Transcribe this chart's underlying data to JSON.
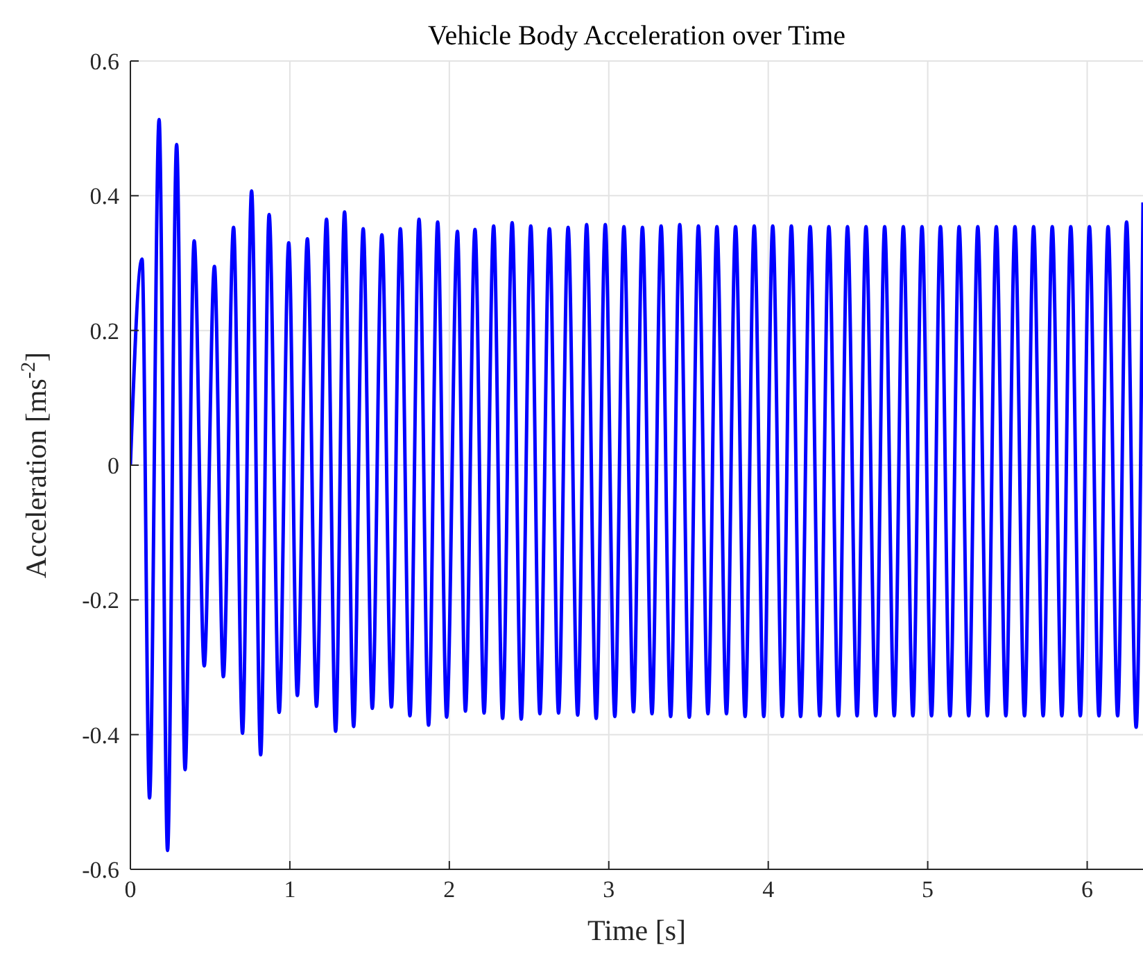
{
  "chart_data": {
    "type": "line",
    "title": "Vehicle Body Acceleration over Time",
    "xlabel": "Time [s]",
    "ylabel": "Acceleration [ms$^{-2}$]",
    "xlim": [
      0,
      6.35
    ],
    "ylim": [
      -0.6,
      0.6
    ],
    "xticks": [
      0,
      1,
      2,
      3,
      4,
      5,
      6
    ],
    "yticks": [
      -0.6,
      -0.4,
      -0.2,
      0,
      0.2,
      0.4,
      0.6
    ],
    "grid": true,
    "line_style": "solid",
    "marker": "none",
    "series": [
      {
        "color": "#0000ff",
        "x": [
          0,
          0.073,
          0.12,
          0.18,
          0.233,
          0.29,
          0.343,
          0.4,
          0.463,
          0.527,
          0.583,
          0.647,
          0.703,
          0.76,
          0.817,
          0.87,
          0.933,
          0.993,
          1.047,
          1.11,
          1.167,
          1.23,
          1.287,
          1.343,
          1.4,
          1.46,
          1.517,
          1.577,
          1.637,
          1.693,
          1.753,
          1.81,
          1.87,
          1.927,
          1.983,
          2.051,
          2.101,
          2.161,
          2.218,
          2.278,
          2.334,
          2.394,
          2.451,
          2.511,
          2.568,
          2.628,
          2.685,
          2.745,
          2.805,
          2.861,
          2.921,
          2.978,
          3.038,
          3.095,
          3.155,
          3.211,
          3.271,
          3.328,
          3.388,
          3.445,
          3.505,
          3.562,
          3.622,
          3.678,
          3.738,
          3.795,
          3.855,
          3.912,
          3.972,
          4.028,
          4.088,
          4.145,
          4.203,
          4.263,
          4.323,
          4.38,
          4.44,
          4.497,
          4.557,
          4.613,
          4.674,
          4.73,
          4.79,
          4.847,
          4.907,
          4.964,
          5.024,
          5.08,
          5.14,
          5.197,
          5.257,
          5.314,
          5.374,
          5.43,
          5.49,
          5.547,
          5.607,
          5.664,
          5.724,
          5.781,
          5.841,
          5.897,
          5.957,
          6.014,
          6.074,
          6.131,
          6.191,
          6.247,
          6.307,
          6.35
        ],
        "values": [
          0,
          0.306,
          -0.494,
          0.513,
          -0.572,
          0.476,
          -0.452,
          0.333,
          -0.298,
          0.295,
          -0.314,
          0.353,
          -0.398,
          0.407,
          -0.43,
          0.372,
          -0.367,
          0.33,
          -0.342,
          0.336,
          -0.358,
          0.365,
          -0.395,
          0.376,
          -0.388,
          0.351,
          -0.361,
          0.342,
          -0.359,
          0.351,
          -0.372,
          0.365,
          -0.386,
          0.361,
          -0.374,
          0.347,
          -0.365,
          0.35,
          -0.368,
          0.355,
          -0.376,
          0.36,
          -0.377,
          0.355,
          -0.369,
          0.351,
          -0.368,
          0.353,
          -0.371,
          0.357,
          -0.376,
          0.357,
          -0.373,
          0.354,
          -0.366,
          0.353,
          -0.369,
          0.355,
          -0.373,
          0.357,
          -0.374,
          0.355,
          -0.369,
          0.354,
          -0.369,
          0.354,
          -0.373,
          0.355,
          -0.373,
          0.355,
          -0.373,
          0.355,
          -0.373,
          0.354,
          -0.372,
          0.354,
          -0.372,
          0.354,
          -0.372,
          0.354,
          -0.372,
          0.354,
          -0.372,
          0.354,
          -0.372,
          0.354,
          -0.372,
          0.354,
          -0.372,
          0.354,
          -0.372,
          0.354,
          -0.372,
          0.354,
          -0.372,
          0.354,
          -0.372,
          0.354,
          -0.372,
          0.354,
          -0.372,
          0.354,
          -0.372,
          0.354,
          -0.372,
          0.354,
          -0.372,
          0.361,
          -0.389,
          0.39
        ]
      }
    ]
  }
}
